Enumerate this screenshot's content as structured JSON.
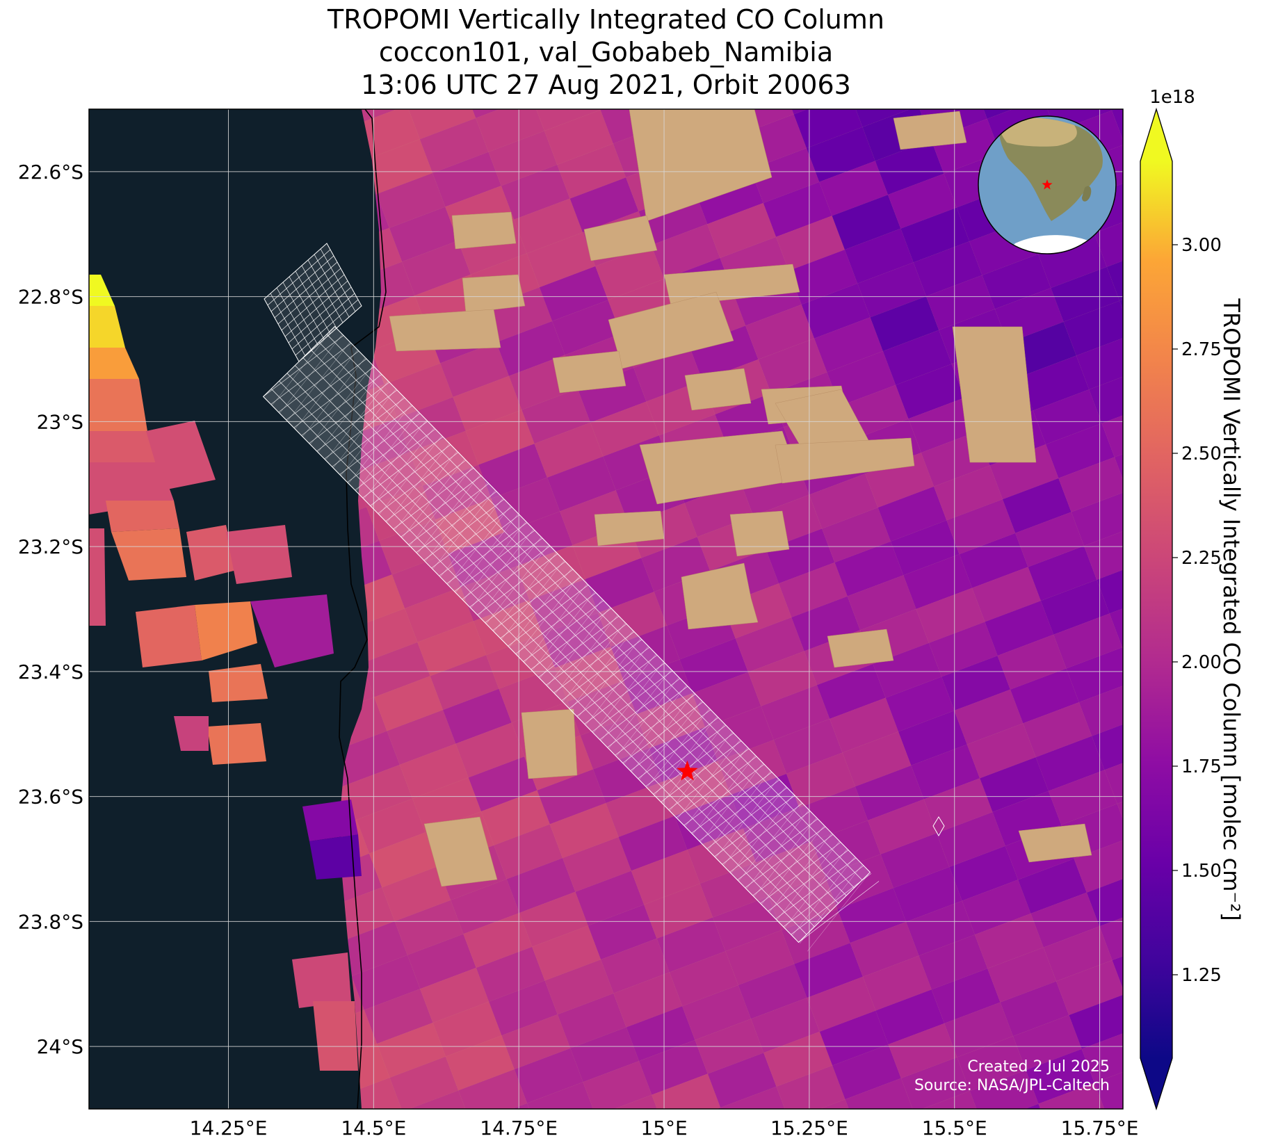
{
  "title": {
    "line1": "TROPOMI Vertically Integrated CO Column",
    "line2": "coccon101, val_Gobabeb_Namibia",
    "line3": "13:06 UTC 27 Aug 2021, Orbit 20063"
  },
  "map": {
    "extent": {
      "lon_min": 14.01,
      "lon_max": 15.79,
      "lat_min": -24.1,
      "lat_max": -22.5
    },
    "x_ticks": [
      {
        "value": 14.25,
        "label": "14.25°E"
      },
      {
        "value": 14.5,
        "label": "14.5°E"
      },
      {
        "value": 14.75,
        "label": "14.75°E"
      },
      {
        "value": 15.0,
        "label": "15°E"
      },
      {
        "value": 15.25,
        "label": "15.25°E"
      },
      {
        "value": 15.5,
        "label": "15.5°E"
      },
      {
        "value": 15.75,
        "label": "15.75°E"
      }
    ],
    "y_ticks": [
      {
        "value": -22.6,
        "label": "22.6°S"
      },
      {
        "value": -22.8,
        "label": "22.8°S"
      },
      {
        "value": -23.0,
        "label": "23°S"
      },
      {
        "value": -23.2,
        "label": "23.2°S"
      },
      {
        "value": -23.4,
        "label": "23.4°S"
      },
      {
        "value": -23.6,
        "label": "23.6°S"
      },
      {
        "value": -23.8,
        "label": "23.8°S"
      },
      {
        "value": -24.0,
        "label": "24°S"
      }
    ],
    "gridlines": true,
    "site_marker": {
      "lon": 15.04,
      "lat": -23.56,
      "symbol": "star",
      "color": "#ff0000"
    },
    "inset_globe": {
      "position": "top-right",
      "marker_color": "#ff0000"
    },
    "colors": {
      "ocean": "#0f1f2b",
      "coast": "#000000",
      "grid": "#d8d8d8",
      "swath": "#ffffff"
    }
  },
  "colorbar": {
    "label": "TROPOMI Vertically Integrated CO Column [molec cm⁻²]",
    "exponent": "1e18",
    "colormap": "plasma",
    "vmin": 1.05,
    "vmax": 3.2,
    "extend": "both",
    "ticks": [
      {
        "value": 1.25,
        "label": "1.25"
      },
      {
        "value": 1.5,
        "label": "1.50"
      },
      {
        "value": 1.75,
        "label": "1.75"
      },
      {
        "value": 2.0,
        "label": "2.00"
      },
      {
        "value": 2.25,
        "label": "2.25"
      },
      {
        "value": 2.5,
        "label": "2.50"
      },
      {
        "value": 2.75,
        "label": "2.75"
      },
      {
        "value": 3.0,
        "label": "3.00"
      }
    ]
  },
  "credits": {
    "created": "Created 2 Jul 2025",
    "source": "Source: NASA/JPL-Caltech"
  }
}
